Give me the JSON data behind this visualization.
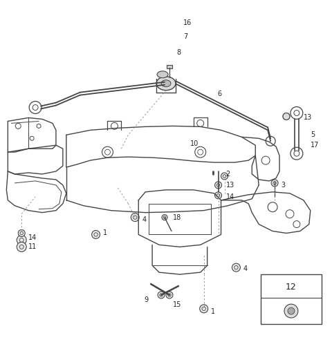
{
  "bg_color": "#ffffff",
  "fig_width": 4.8,
  "fig_height": 4.95,
  "dpi": 100,
  "line_color": "#444444",
  "label_color": "#222222",
  "fs": 7.0
}
